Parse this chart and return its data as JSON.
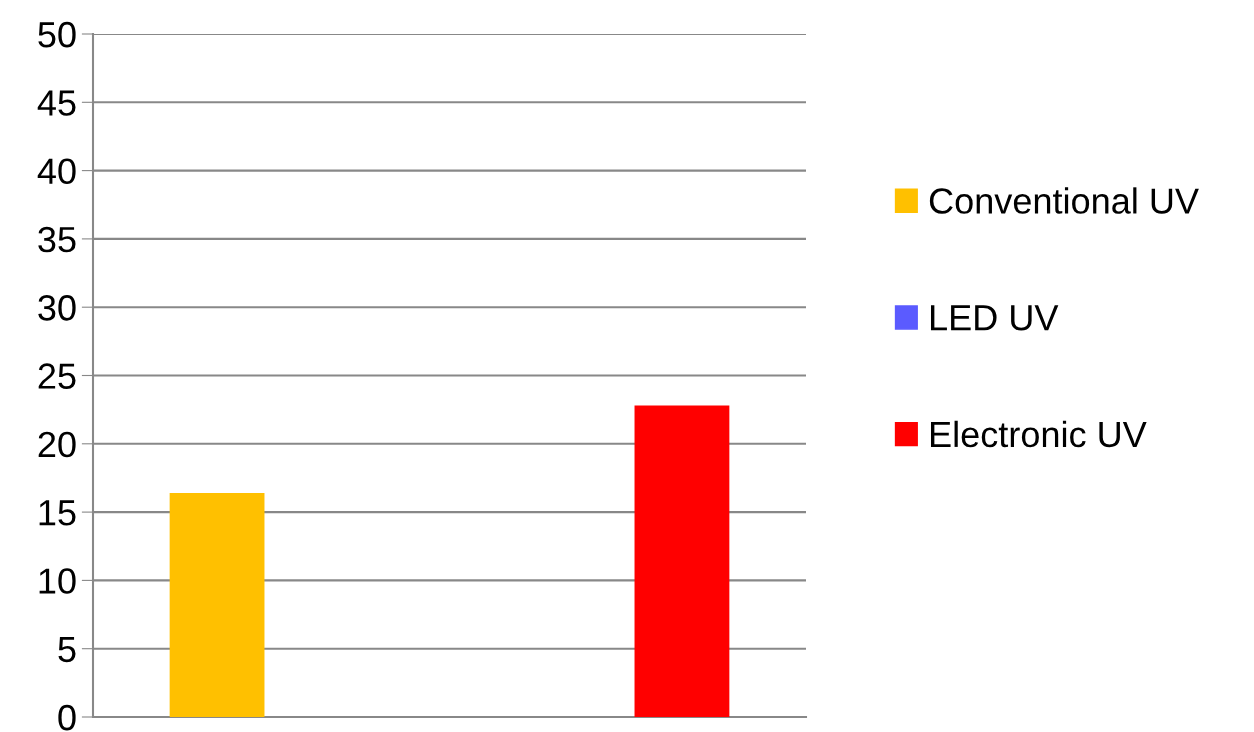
{
  "chart_data": {
    "type": "bar",
    "categories": [
      null
    ],
    "series": [
      {
        "name": "Conventional UV",
        "color": "#ffc000",
        "values": [
          16.4
        ]
      },
      {
        "name": "LED UV",
        "color": "#5b5bff",
        "values": [
          0
        ]
      },
      {
        "name": "Electronic UV",
        "color": "#ff0000",
        "values": [
          22.8
        ]
      }
    ],
    "ylim": [
      0,
      50
    ],
    "yticks": [
      0,
      5,
      10,
      15,
      20,
      25,
      30,
      35,
      40,
      45,
      50
    ],
    "grid": "y",
    "legend": "right"
  }
}
